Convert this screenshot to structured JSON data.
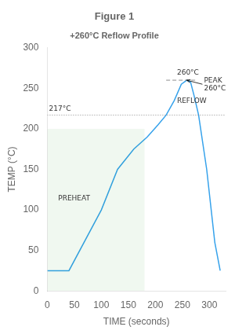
{
  "chart_data": {
    "type": "line",
    "title": "Figure 1",
    "subtitle": "+260°C Reflow Profile",
    "x_label": "TIME (seconds)",
    "y_label": "TEMP (°C)",
    "x": [
      0,
      40,
      100,
      130,
      160,
      185,
      205,
      220,
      235,
      248,
      258,
      265,
      272,
      280,
      295,
      310,
      320
    ],
    "values": [
      25,
      25,
      100,
      150,
      175,
      190,
      205,
      217,
      235,
      255,
      260,
      258,
      240,
      217,
      150,
      60,
      25
    ],
    "xlim": [
      0,
      330
    ],
    "xticks": [
      0,
      50,
      100,
      150,
      200,
      250,
      300
    ],
    "ylim": [
      0,
      300
    ],
    "yticks": [
      0,
      50,
      100,
      150,
      200,
      250,
      300
    ],
    "grid": false,
    "annotations": [
      {
        "type": "span",
        "x": [
          0,
          180
        ],
        "y": [
          0,
          200
        ]
      },
      {
        "type": "hline",
        "y": 260,
        "x": [
          220,
          275
        ],
        "line_style": "dashed"
      },
      {
        "type": "hline",
        "y": 217,
        "line_style": "dotted"
      },
      {
        "type": "text",
        "text": "260°C",
        "x": 240,
        "y": 265
      },
      {
        "type": "text",
        "text": "217°C",
        "x": 3,
        "y": 220
      },
      {
        "type": "text",
        "text": "PREHEAT",
        "x": 20,
        "y": 110
      },
      {
        "type": "text",
        "text": "REFLOW",
        "x": 240,
        "y": 230
      },
      {
        "type": "text",
        "text": "PEAK\n260°C",
        "x": 290,
        "y": 255,
        "arrow_to": [
          258,
          260
        ]
      }
    ]
  }
}
